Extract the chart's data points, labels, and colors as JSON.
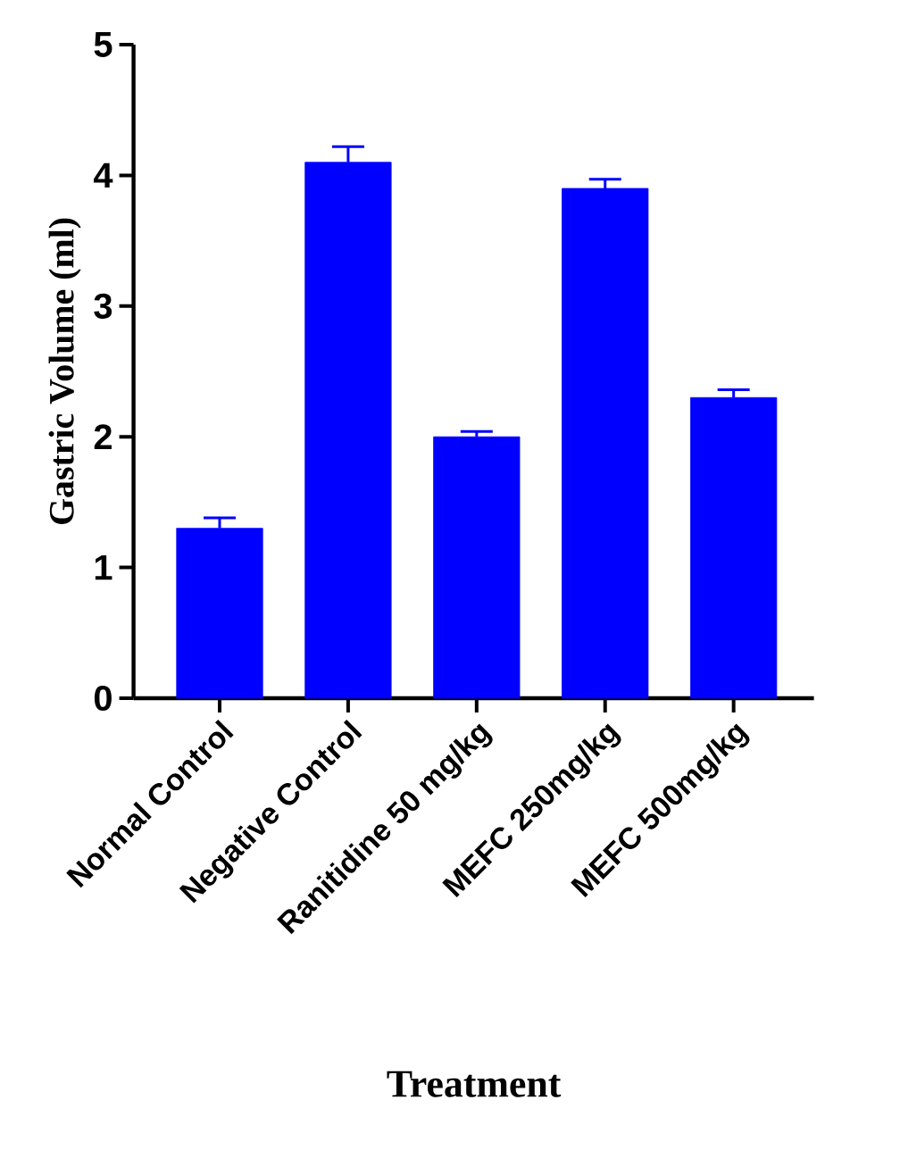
{
  "chart_data": {
    "type": "bar",
    "xlabel": "Treatment",
    "ylabel": "Gastric Volume (ml)",
    "categories": [
      "Normal Control",
      "Negative Control",
      "Ranitidine 50 mg/kg",
      "MEFC 250mg/kg",
      "MEFC 500mg/kg"
    ],
    "values": [
      1.3,
      4.1,
      2.0,
      3.9,
      2.3
    ],
    "errors": [
      0.08,
      0.12,
      0.04,
      0.07,
      0.06
    ],
    "color": "#0000ff",
    "ylim": [
      0,
      5
    ],
    "yticks": [
      0,
      1,
      2,
      3,
      4,
      5
    ]
  }
}
